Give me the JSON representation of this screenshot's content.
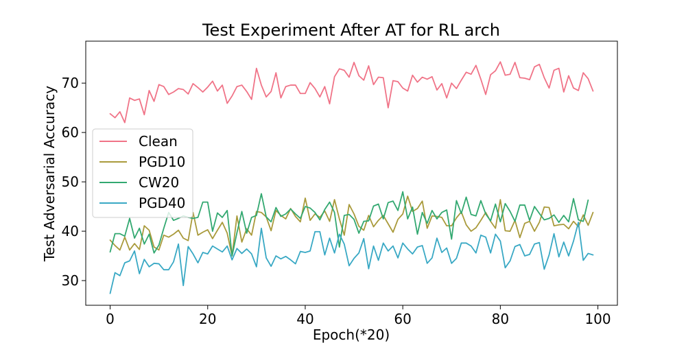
{
  "chart_data": {
    "type": "line",
    "title": "Test Experiment After AT for RL arch",
    "xlabel": "Epoch(*20)",
    "ylabel": "Test Adversarial Accuracy",
    "xlim": [
      -5,
      104
    ],
    "ylim": [
      25,
      78.5
    ],
    "xticks": [
      0,
      20,
      40,
      60,
      80,
      100
    ],
    "yticks": [
      30,
      40,
      50,
      60,
      70
    ],
    "grid": false,
    "legend_position": "center-left",
    "series": [
      {
        "name": "Clean",
        "color": "#f07387",
        "values": [
          63.8,
          63.0,
          64.2,
          62.0,
          67.0,
          66.5,
          66.8,
          63.6,
          68.5,
          66.3,
          69.7,
          69.3,
          67.7,
          68.2,
          68.9,
          68.7,
          67.8,
          69.9,
          69.1,
          68.2,
          69.2,
          70.4,
          68.4,
          69.6,
          65.9,
          67.4,
          69.3,
          69.6,
          68.3,
          66.7,
          73.0,
          69.6,
          67.2,
          68.3,
          72.1,
          67.0,
          69.3,
          69.6,
          69.6,
          67.9,
          67.9,
          70.1,
          68.9,
          67.2,
          69.3,
          65.8,
          71.3,
          72.9,
          72.6,
          71.2,
          74.2,
          71.5,
          70.6,
          73.5,
          69.7,
          71.2,
          71.1,
          65.0,
          70.5,
          70.3,
          69.0,
          68.4,
          71.6,
          70.2,
          71.2,
          70.8,
          71.3,
          68.6,
          69.9,
          67.0,
          70.0,
          68.9,
          70.6,
          72.2,
          71.8,
          73.6,
          70.8,
          67.7,
          71.7,
          72.5,
          74.3,
          71.6,
          71.8,
          74.2,
          71.1,
          71.0,
          70.7,
          73.3,
          73.8,
          71.1,
          69.0,
          72.6,
          73.0,
          68.2,
          71.5,
          69.0,
          68.5,
          72.1,
          70.9,
          68.4
        ]
      },
      {
        "name": "PGD10",
        "color": "#a99a3b",
        "values": [
          38.2,
          37.1,
          36.2,
          38.8,
          36.2,
          37.5,
          36.3,
          41.1,
          40.2,
          36.8,
          36.2,
          39.2,
          38.8,
          39.4,
          40.2,
          38.6,
          38.1,
          43.8,
          39.2,
          39.8,
          40.3,
          38.5,
          40.2,
          41.8,
          39.6,
          35.0,
          43.1,
          37.8,
          40.5,
          39.2,
          44.0,
          43.8,
          42.9,
          40.1,
          44.2,
          43.2,
          42.5,
          44.6,
          43.0,
          41.9,
          46.7,
          42.2,
          43.5,
          42.8,
          44.1,
          42.0,
          46.4,
          42.5,
          39.2,
          45.4,
          43.5,
          41.0,
          40.2,
          43.2,
          40.9,
          42.2,
          43.2,
          41.5,
          39.8,
          42.4,
          43.5,
          47.1,
          44.0,
          44.6,
          46.1,
          40.6,
          43.1,
          43.0,
          42.8,
          41.1,
          41.1,
          42.7,
          43.9,
          41.3,
          40.0,
          40.7,
          42.2,
          43.8,
          42.0,
          40.6,
          46.4,
          40.1,
          40.0,
          42.2,
          38.7,
          41.6,
          42.0,
          40.0,
          41.8,
          44.9,
          44.8,
          41.1,
          41.3,
          41.4,
          40.5,
          42.0,
          40.9,
          43.3,
          41.2,
          43.8
        ]
      },
      {
        "name": "CW20",
        "color": "#32a870",
        "values": [
          35.8,
          39.5,
          39.5,
          39.0,
          42.6,
          38.6,
          40.6,
          37.4,
          39.4,
          35.6,
          37.2,
          40.6,
          43.8,
          42.2,
          42.6,
          43.1,
          42.8,
          42.6,
          42.8,
          45.9,
          45.9,
          40.0,
          43.7,
          42.8,
          44.2,
          35.0,
          39.7,
          44.0,
          39.6,
          42.8,
          43.2,
          47.6,
          42.9,
          41.9,
          44.8,
          43.0,
          43.5,
          44.5,
          43.5,
          42.6,
          45.0,
          44.7,
          43.8,
          42.3,
          44.4,
          45.9,
          43.8,
          36.8,
          43.2,
          43.4,
          42.4,
          39.6,
          42.0,
          42.1,
          45.1,
          45.5,
          42.5,
          45.8,
          46.1,
          44.2,
          48.0,
          42.5,
          44.9,
          39.4,
          43.8,
          41.6,
          44.2,
          42.5,
          43.8,
          44.3,
          38.4,
          46.2,
          43.6,
          46.9,
          43.4,
          43.1,
          46.2,
          43.5,
          42.1,
          45.5,
          41.9,
          45.6,
          44.0,
          42.0,
          45.3,
          45.3,
          42.2,
          45.0,
          43.6,
          42.3,
          42.6,
          43.3,
          41.8,
          43.2,
          41.9,
          46.6,
          42.3,
          42.0,
          46.3,
          null
        ]
      },
      {
        "name": "PGD40",
        "color": "#38a8c4",
        "values": [
          27.4,
          31.6,
          31.0,
          33.6,
          34.0,
          36.0,
          31.4,
          34.3,
          32.8,
          33.5,
          33.4,
          32.2,
          32.2,
          33.8,
          37.4,
          29.0,
          36.9,
          35.4,
          33.6,
          35.7,
          35.4,
          37.0,
          36.4,
          35.8,
          37.0,
          34.2,
          36.5,
          35.5,
          36.4,
          35.4,
          32.8,
          40.6,
          34.6,
          32.9,
          35.0,
          34.4,
          34.9,
          34.2,
          33.4,
          35.9,
          35.7,
          36.0,
          39.9,
          39.9,
          35.2,
          38.6,
          35.6,
          39.4,
          37.4,
          33.0,
          34.5,
          35.6,
          38.5,
          32.4,
          37.0,
          34.1,
          37.6,
          36.0,
          37.0,
          34.6,
          37.6,
          36.4,
          35.4,
          36.8,
          37.1,
          33.5,
          34.6,
          38.6,
          35.7,
          36.6,
          33.5,
          34.5,
          37.6,
          37.6,
          37.0,
          35.6,
          39.2,
          38.8,
          35.6,
          39.4,
          38.0,
          32.6,
          34.0,
          36.9,
          37.3,
          35.0,
          35.3,
          37.4,
          37.7,
          32.3,
          35.2,
          39.5,
          34.8,
          37.8,
          35.0,
          38.0,
          41.8,
          34.1,
          35.5,
          35.2
        ]
      }
    ]
  }
}
